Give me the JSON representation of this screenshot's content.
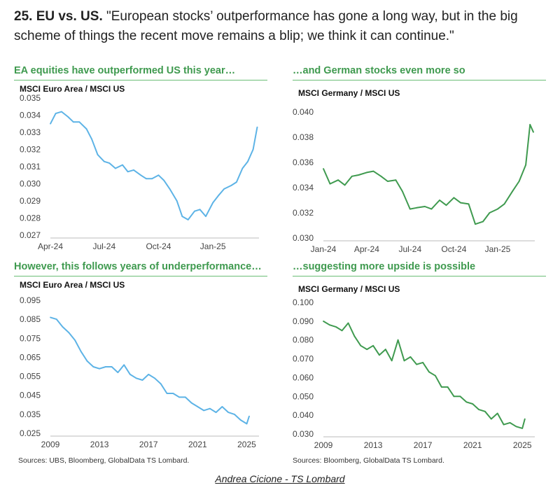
{
  "headline": {
    "number": "25. EU vs. US.",
    "quote": "\"European stocks’ outperformance has gone a long way, but in the big scheme of things the recent move remains a blip; we think it can continue.\""
  },
  "colors": {
    "light_blue": "#5db3e6",
    "green": "#3f9a4f",
    "title_green": "#3f9a4f"
  },
  "sources": {
    "left": "Sources: UBS, Bloomberg, GlobalData TS Lombard.",
    "right": "Sources: Bloomberg, GlobalData TS Lombard."
  },
  "credit": "Andrea Cicione - TS Lombard",
  "chart_data": [
    {
      "type": "line",
      "title": "EA equities have outperformed US this year…",
      "ylabel": "MSCI Euro Area / MSCI US",
      "color": "#5db3e6",
      "ylim": [
        0.027,
        0.035
      ],
      "yticks": [
        "0.035",
        "0.034",
        "0.033",
        "0.032",
        "0.031",
        "0.030",
        "0.029",
        "0.028",
        "0.027"
      ],
      "xticks": [
        "Apr-24",
        "Jul-24",
        "Oct-24",
        "Jan-25"
      ],
      "xlim": [
        "2024-04-01",
        "2025-03-20"
      ],
      "x": [
        "2024-04-01",
        "2024-04-10",
        "2024-04-20",
        "2024-05-01",
        "2024-05-10",
        "2024-05-20",
        "2024-06-01",
        "2024-06-10",
        "2024-06-20",
        "2024-07-01",
        "2024-07-10",
        "2024-07-20",
        "2024-08-01",
        "2024-08-10",
        "2024-08-20",
        "2024-09-01",
        "2024-09-10",
        "2024-09-20",
        "2024-10-01",
        "2024-10-10",
        "2024-10-20",
        "2024-11-01",
        "2024-11-10",
        "2024-11-20",
        "2024-12-01",
        "2024-12-10",
        "2024-12-20",
        "2025-01-01",
        "2025-01-10",
        "2025-01-20",
        "2025-02-01",
        "2025-02-10",
        "2025-02-20",
        "2025-03-01",
        "2025-03-10",
        "2025-03-17"
      ],
      "values": [
        0.0335,
        0.0341,
        0.0342,
        0.0339,
        0.0336,
        0.0336,
        0.0332,
        0.0326,
        0.0317,
        0.0313,
        0.0312,
        0.0309,
        0.0311,
        0.0307,
        0.0308,
        0.0305,
        0.0303,
        0.0303,
        0.0305,
        0.0302,
        0.0297,
        0.029,
        0.0281,
        0.0279,
        0.0284,
        0.0285,
        0.0281,
        0.0289,
        0.0293,
        0.0297,
        0.0299,
        0.0301,
        0.0309,
        0.0313,
        0.032,
        0.0333
      ]
    },
    {
      "type": "line",
      "title": "…and German stocks even more so",
      "ylabel": "MSCI Germany / MSCI US",
      "color": "#3f9a4f",
      "ylim": [
        0.03,
        0.04
      ],
      "yticks": [
        "0.040",
        "0.038",
        "0.036",
        "0.034",
        "0.032",
        "0.030"
      ],
      "xticks": [
        "Jan-24",
        "Apr-24",
        "Jul-24",
        "Oct-24",
        "Jan-25"
      ],
      "xlim": [
        "2024-01-01",
        "2025-03-20"
      ],
      "x": [
        "2024-01-01",
        "2024-01-15",
        "2024-02-01",
        "2024-02-15",
        "2024-03-01",
        "2024-03-15",
        "2024-04-01",
        "2024-04-15",
        "2024-05-01",
        "2024-05-15",
        "2024-06-01",
        "2024-06-15",
        "2024-07-01",
        "2024-07-15",
        "2024-08-01",
        "2024-08-15",
        "2024-09-01",
        "2024-09-15",
        "2024-10-01",
        "2024-10-15",
        "2024-11-01",
        "2024-11-15",
        "2024-12-01",
        "2024-12-15",
        "2025-01-01",
        "2025-01-15",
        "2025-02-01",
        "2025-02-15",
        "2025-03-01",
        "2025-03-10",
        "2025-03-17"
      ],
      "values": [
        0.0355,
        0.0343,
        0.0346,
        0.0342,
        0.0349,
        0.035,
        0.0352,
        0.0353,
        0.0349,
        0.0345,
        0.0346,
        0.0337,
        0.0323,
        0.0324,
        0.0325,
        0.0323,
        0.033,
        0.0326,
        0.0332,
        0.0328,
        0.0327,
        0.0311,
        0.0313,
        0.032,
        0.0323,
        0.0327,
        0.0337,
        0.0345,
        0.0358,
        0.039,
        0.0384
      ]
    },
    {
      "type": "line",
      "title": "However, this follows years of underperformance…",
      "ylabel": "MSCI Euro Area / MSCI US",
      "color": "#5db3e6",
      "ylim": [
        0.025,
        0.095
      ],
      "yticks": [
        "0.095",
        "0.085",
        "0.075",
        "0.065",
        "0.055",
        "0.045",
        "0.035",
        "0.025"
      ],
      "xticks": [
        "2009",
        "2013",
        "2017",
        "2021",
        "2025"
      ],
      "xlim": [
        2009,
        2026
      ],
      "x": [
        2009.0,
        2009.5,
        2010.0,
        2010.5,
        2011.0,
        2011.5,
        2012.0,
        2012.5,
        2013.0,
        2013.5,
        2014.0,
        2014.5,
        2015.0,
        2015.5,
        2016.0,
        2016.5,
        2017.0,
        2017.5,
        2018.0,
        2018.5,
        2019.0,
        2019.5,
        2020.0,
        2020.5,
        2021.0,
        2021.5,
        2022.0,
        2022.5,
        2023.0,
        2023.5,
        2024.0,
        2024.5,
        2025.0,
        2025.2
      ],
      "values": [
        0.086,
        0.085,
        0.081,
        0.078,
        0.074,
        0.068,
        0.063,
        0.06,
        0.059,
        0.06,
        0.06,
        0.057,
        0.061,
        0.056,
        0.054,
        0.053,
        0.056,
        0.054,
        0.051,
        0.046,
        0.046,
        0.044,
        0.044,
        0.041,
        0.039,
        0.037,
        0.038,
        0.036,
        0.039,
        0.036,
        0.035,
        0.032,
        0.03,
        0.034
      ]
    },
    {
      "type": "line",
      "title": "…suggesting more upside is possible",
      "ylabel": "MSCI Germany / MSCI US",
      "color": "#3f9a4f",
      "ylim": [
        0.03,
        0.1
      ],
      "yticks": [
        "0.100",
        "0.090",
        "0.080",
        "0.070",
        "0.060",
        "0.050",
        "0.040",
        "0.030"
      ],
      "xticks": [
        "2009",
        "2013",
        "2017",
        "2021",
        "2025"
      ],
      "xlim": [
        2009,
        2026
      ],
      "x": [
        2009.0,
        2009.5,
        2010.0,
        2010.5,
        2011.0,
        2011.5,
        2012.0,
        2012.5,
        2013.0,
        2013.5,
        2014.0,
        2014.5,
        2015.0,
        2015.5,
        2016.0,
        2016.5,
        2017.0,
        2017.5,
        2018.0,
        2018.5,
        2019.0,
        2019.5,
        2020.0,
        2020.5,
        2021.0,
        2021.5,
        2022.0,
        2022.5,
        2023.0,
        2023.5,
        2024.0,
        2024.5,
        2025.0,
        2025.2
      ],
      "values": [
        0.09,
        0.088,
        0.087,
        0.085,
        0.089,
        0.082,
        0.077,
        0.075,
        0.077,
        0.072,
        0.075,
        0.069,
        0.08,
        0.069,
        0.071,
        0.067,
        0.068,
        0.063,
        0.061,
        0.055,
        0.055,
        0.05,
        0.05,
        0.047,
        0.046,
        0.043,
        0.042,
        0.038,
        0.041,
        0.035,
        0.036,
        0.034,
        0.033,
        0.038
      ]
    }
  ]
}
